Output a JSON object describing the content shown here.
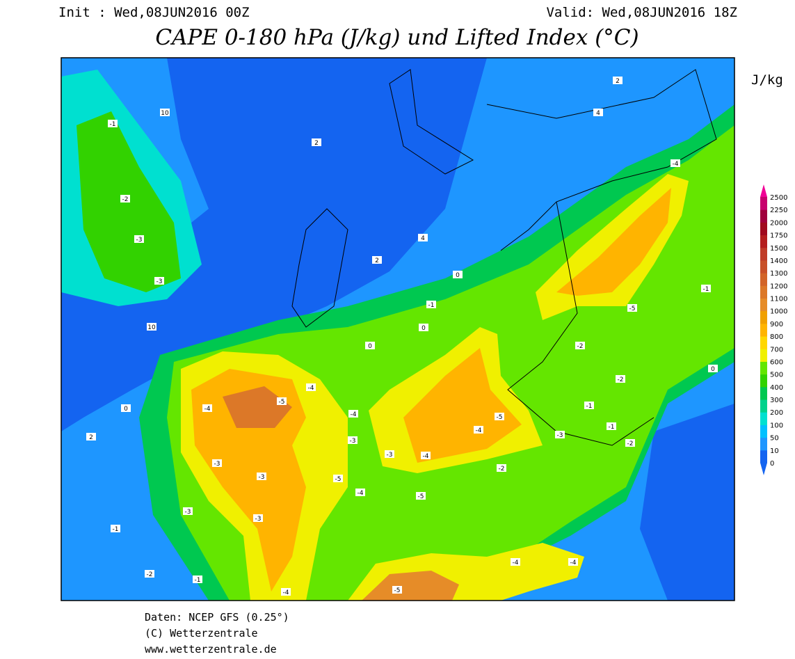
{
  "header": {
    "init": "Init : Wed,08JUN2016 00Z",
    "valid": "Valid: Wed,08JUN2016 18Z",
    "title": "CAPE 0-180 hPa (J/kg) und Lifted Index (°C)",
    "unit": "J/kg"
  },
  "colorbar": {
    "levels": [
      0,
      10,
      50,
      100,
      200,
      300,
      400,
      500,
      600,
      700,
      800,
      900,
      1000,
      1100,
      1200,
      1300,
      1400,
      1500,
      1750,
      2000,
      2250,
      2500
    ],
    "colors": [
      "#1464f0",
      "#1e96ff",
      "#00c0ff",
      "#00e0d0",
      "#00d28c",
      "#00c850",
      "#32d200",
      "#64e600",
      "#f0f000",
      "#ffd700",
      "#ffb400",
      "#f0a000",
      "#e68c28",
      "#dc7828",
      "#d26428",
      "#c85028",
      "#c03c28",
      "#b41e1e",
      "#a00a1e",
      "#a0003c",
      "#c8006e"
    ],
    "below_color": "#1464f0",
    "above_color": "#f00096"
  },
  "contour_labels": [
    10,
    2,
    10,
    -1,
    -2,
    -3,
    -3,
    -4,
    -5,
    -3,
    -3,
    -3,
    -3,
    -4,
    -4,
    -3,
    -3,
    -4,
    -5,
    -4,
    -2,
    -5,
    -4,
    -5,
    -4,
    -5,
    -4,
    -4,
    -4,
    -5,
    -2,
    -2,
    -1,
    0,
    0,
    0,
    2,
    4,
    4,
    2,
    0,
    2,
    -1,
    -2,
    -1,
    -1,
    0,
    -2,
    -3,
    -1,
    -1
  ],
  "footer": {
    "source": "Daten: NCEP GFS (0.25°)",
    "copyright": "(C) Wetterzentrale",
    "url": "www.wetterzentrale.de"
  }
}
